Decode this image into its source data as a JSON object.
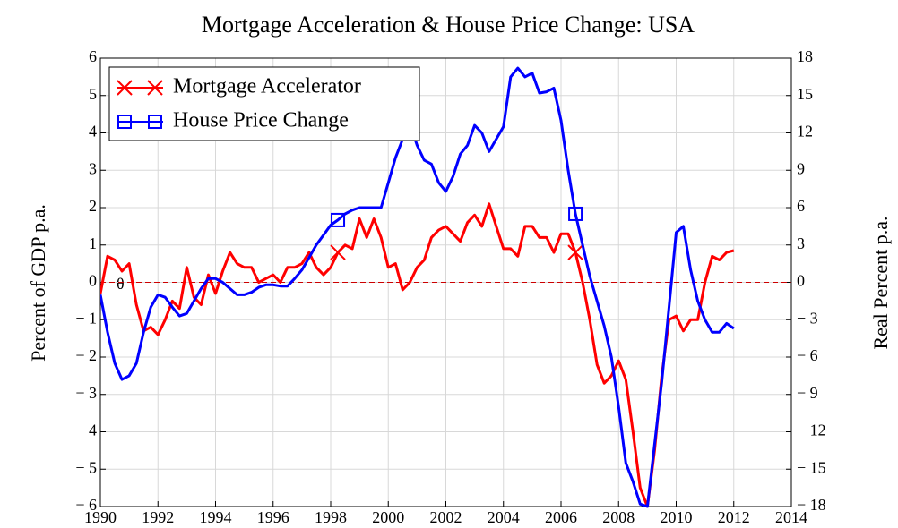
{
  "chart_data": {
    "type": "line",
    "title": "Mortgage Acceleration & House Price Change: USA",
    "ylabel": "Percent of GDP p.a.",
    "y2label": "Real Percent p.a.",
    "annotations": [
      "θ"
    ],
    "x": [
      1990,
      1990.25,
      1990.5,
      1990.75,
      1991,
      1991.25,
      1991.5,
      1991.75,
      1992,
      1992.25,
      1992.5,
      1992.75,
      1993,
      1993.25,
      1993.5,
      1993.75,
      1994,
      1994.25,
      1994.5,
      1994.75,
      1995,
      1995.25,
      1995.5,
      1995.75,
      1996,
      1996.25,
      1996.5,
      1996.75,
      1997,
      1997.25,
      1997.5,
      1997.75,
      1998,
      1998.25,
      1998.5,
      1998.75,
      1999,
      1999.25,
      1999.5,
      1999.75,
      2000,
      2000.25,
      2000.5,
      2000.75,
      2001,
      2001.25,
      2001.5,
      2001.75,
      2002,
      2002.25,
      2002.5,
      2002.75,
      2003,
      2003.25,
      2003.5,
      2003.75,
      2004,
      2004.25,
      2004.5,
      2004.75,
      2005,
      2005.25,
      2005.5,
      2005.75,
      2006,
      2006.25,
      2006.5,
      2006.75,
      2007,
      2007.25,
      2007.5,
      2007.75,
      2008,
      2008.25,
      2008.5,
      2008.75,
      2009,
      2009.25,
      2009.5,
      2009.75,
      2010,
      2010.25,
      2010.5,
      2010.75,
      2011,
      2011.25,
      2011.5,
      2011.75,
      2012
    ],
    "series": [
      {
        "name": "Mortgage Accelerator",
        "color": "#ff0000",
        "marker": "x",
        "markers_x": [
          1998.25,
          2006.5
        ],
        "values": [
          -0.3,
          0.7,
          0.6,
          0.3,
          0.5,
          -0.6,
          -1.3,
          -1.2,
          -1.4,
          -1.0,
          -0.5,
          -0.7,
          0.4,
          -0.4,
          -0.6,
          0.2,
          -0.3,
          0.3,
          0.8,
          0.5,
          0.4,
          0.4,
          0.0,
          0.1,
          0.2,
          0.0,
          0.4,
          0.4,
          0.5,
          0.8,
          0.4,
          0.2,
          0.4,
          0.8,
          1.0,
          0.9,
          1.7,
          1.2,
          1.7,
          1.2,
          0.4,
          0.5,
          -0.2,
          0.0,
          0.4,
          0.6,
          1.2,
          1.4,
          1.5,
          1.3,
          1.1,
          1.6,
          1.8,
          1.5,
          2.1,
          1.5,
          0.9,
          0.9,
          0.7,
          1.5,
          1.5,
          1.2,
          1.2,
          0.8,
          1.3,
          1.3,
          0.8,
          0.0,
          -1.0,
          -2.2,
          -2.7,
          -2.5,
          -2.1,
          -2.6,
          -4.0,
          -5.5,
          -6.0,
          -4.5,
          -2.5,
          -1.0,
          -0.9,
          -1.3,
          -1.0,
          -1.0,
          0.0,
          0.7,
          0.6,
          0.8,
          0.85
        ]
      },
      {
        "name": "House Price Change",
        "color": "#0000ff",
        "marker": "square",
        "axis": "y2",
        "markers_x": [
          1998.25,
          2006.5
        ],
        "values": [
          -1,
          -4,
          -6.5,
          -7.8,
          -7.5,
          -6.5,
          -4,
          -2,
          -1,
          -1.2,
          -2,
          -2.7,
          -2.5,
          -1.5,
          -0.5,
          0.3,
          0.3,
          0,
          -0.5,
          -1,
          -1,
          -0.8,
          -0.4,
          -0.2,
          -0.2,
          -0.3,
          -0.3,
          0.3,
          1,
          2,
          3,
          3.8,
          4.6,
          5,
          5.5,
          5.8,
          6,
          6,
          6,
          6,
          8,
          10,
          11.5,
          12.8,
          11,
          9.8,
          9.5,
          8,
          7.3,
          8.5,
          10.3,
          11,
          12.6,
          12,
          10.5,
          11.5,
          12.5,
          16.5,
          17.2,
          16.5,
          16.8,
          15.2,
          15.3,
          15.6,
          13,
          9,
          5.5,
          3,
          0.5,
          -1.5,
          -3.5,
          -6,
          -10,
          -14.5,
          -16,
          -17.8,
          -18,
          -13,
          -8,
          -2,
          4,
          4.5,
          1,
          -1.5,
          -3,
          -4,
          -4,
          -3.3,
          -3.7
        ]
      }
    ],
    "xlim": [
      1990,
      2014
    ],
    "xticks": [
      1990,
      1992,
      1994,
      1996,
      1998,
      2000,
      2002,
      2004,
      2006,
      2008,
      2010,
      2012,
      2014
    ],
    "ylim": [
      -6,
      6
    ],
    "yticks": [
      {
        "value": -6,
        "label": "− 6"
      },
      {
        "value": -5,
        "label": "− 5"
      },
      {
        "value": -4,
        "label": "− 4"
      },
      {
        "value": -3,
        "label": "− 3"
      },
      {
        "value": -2,
        "label": "− 2"
      },
      {
        "value": -1,
        "label": "− 1"
      },
      0,
      1,
      2,
      3,
      4,
      5,
      6
    ],
    "y2lim": [
      -18,
      18
    ],
    "y2ticks": [
      {
        "value": -18,
        "label": "− 18"
      },
      {
        "value": -15,
        "label": "− 15"
      },
      {
        "value": -12,
        "label": "− 12"
      },
      {
        "value": -9,
        "label": "− 9"
      },
      {
        "value": -6,
        "label": "− 6"
      },
      {
        "value": -3,
        "label": "− 3"
      },
      0,
      3,
      6,
      9,
      12,
      15,
      18
    ],
    "grid": true,
    "zero_line_color": "#cc0000",
    "legend": "upper left"
  }
}
